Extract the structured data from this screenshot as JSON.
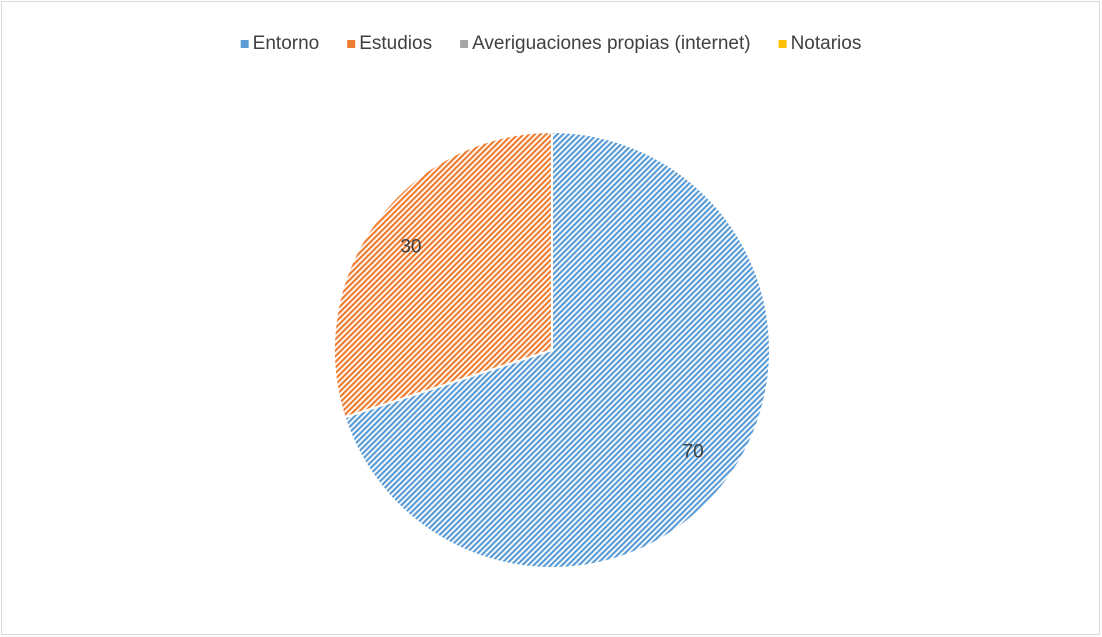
{
  "chart_data": {
    "type": "pie",
    "categories": [
      "Entorno",
      "Estudios",
      "Averiguaciones propias (internet)",
      "Notarios"
    ],
    "values": [
      70,
      30,
      0,
      0
    ],
    "colors": [
      "#5b9bd5",
      "#ed7d31",
      "#a5a5a5",
      "#ffc000"
    ],
    "legend": "top"
  }
}
